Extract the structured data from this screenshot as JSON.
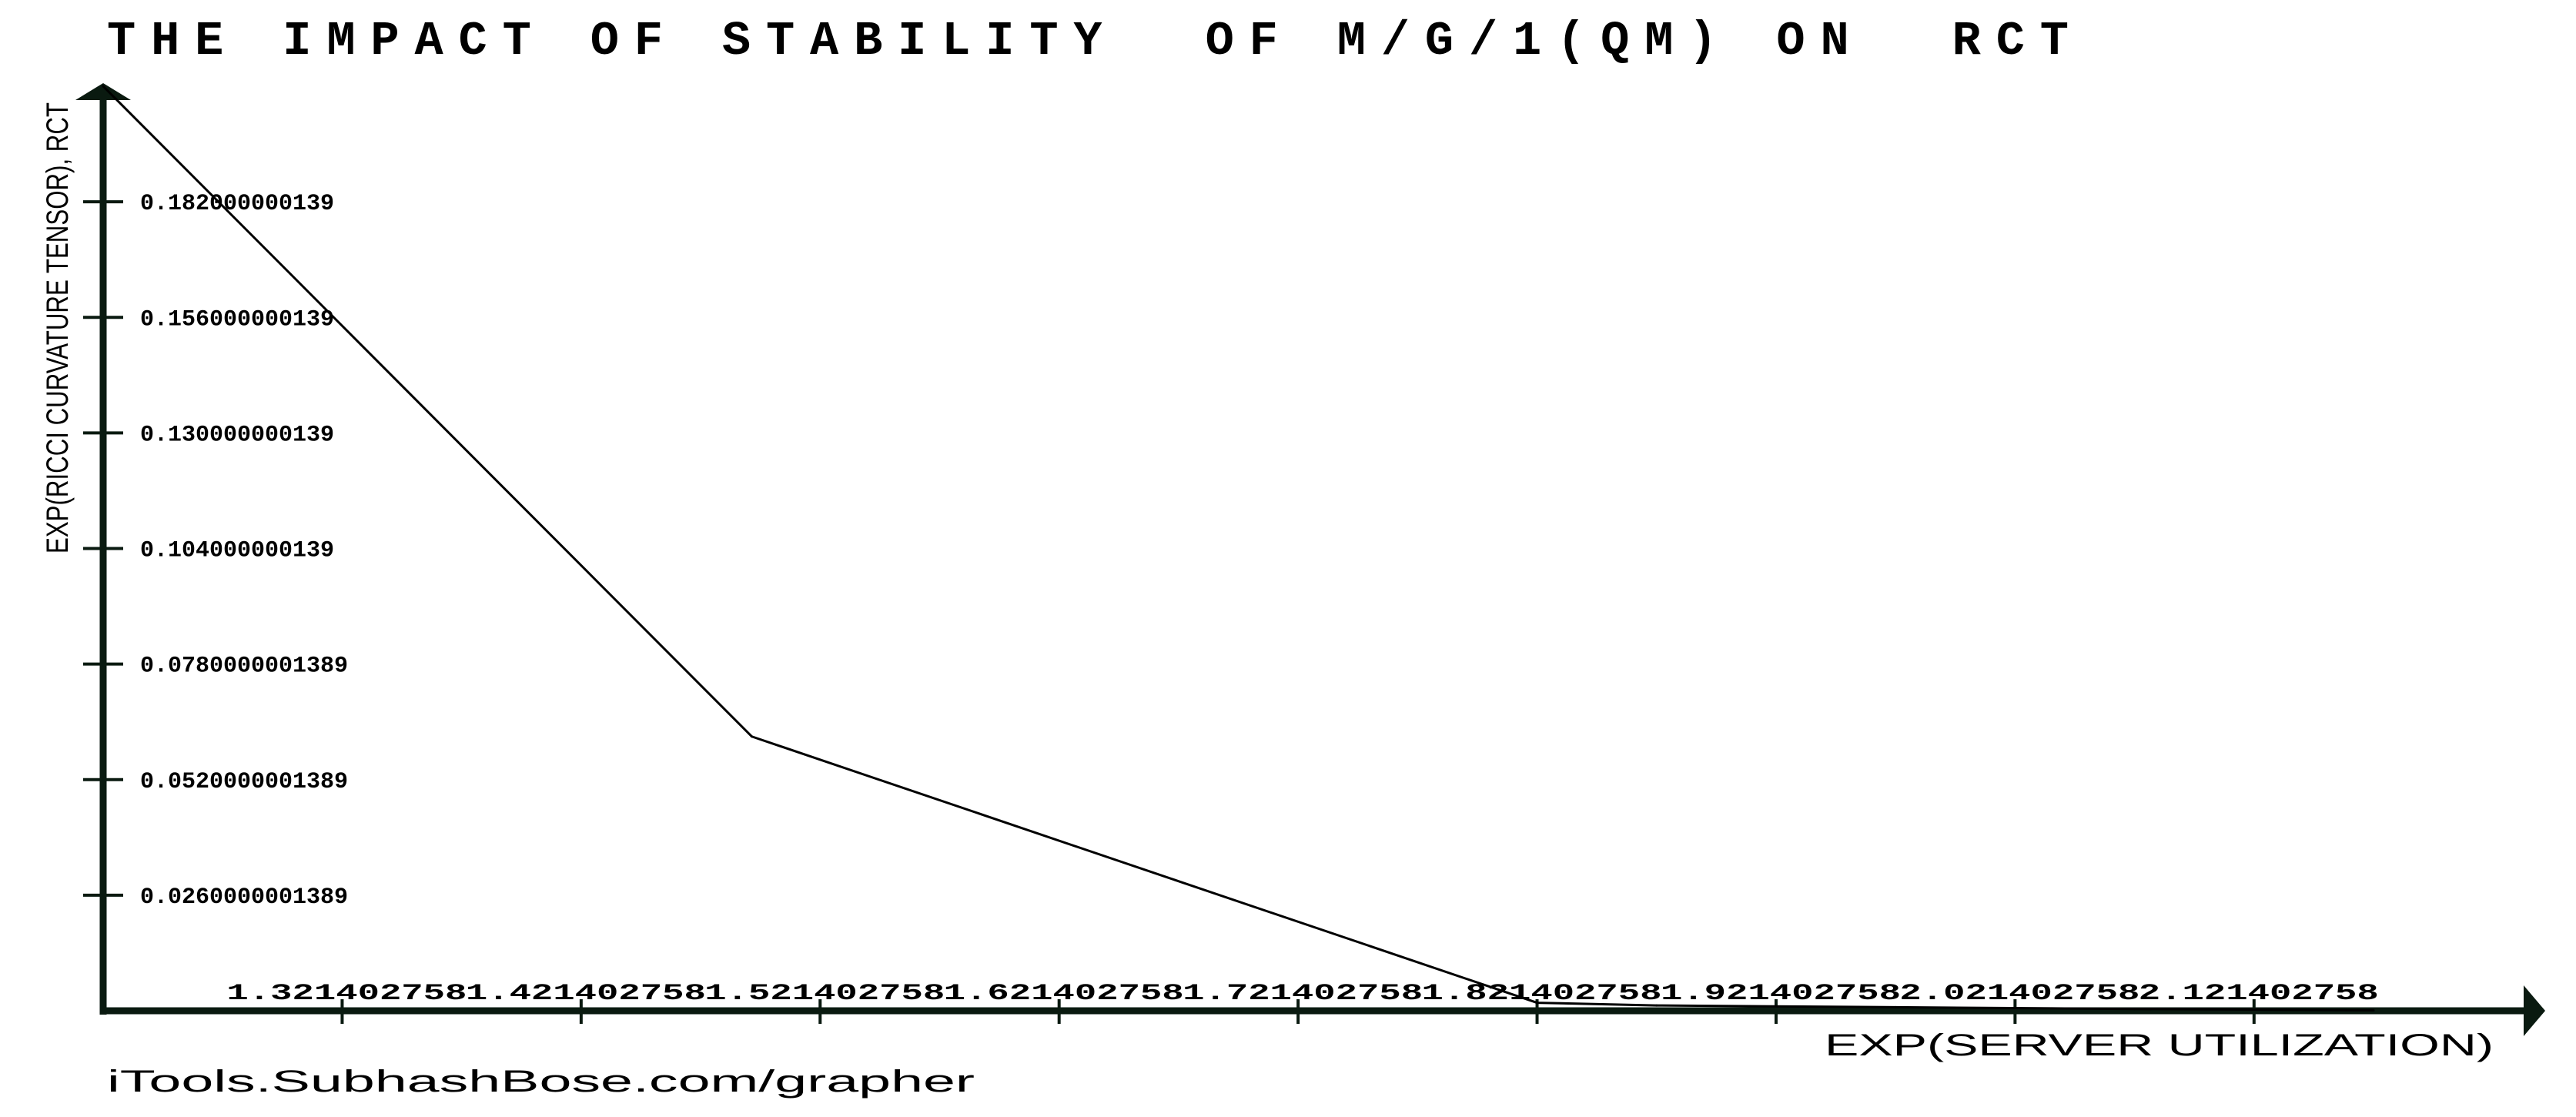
{
  "chart_data": {
    "type": "line",
    "title": "THE IMPACT OF STABILITY  OF M/G/1(QM) ON  RCT",
    "xlabel": "EXP(SERVER UTILIZATION)",
    "ylabel": "EXP(RICCI CURVATURE TENSOR), RCT",
    "x_ticks": [
      "1.321402758",
      "1.421402758",
      "1.521402758",
      "1.621402758",
      "1.721402758",
      "1.821402758",
      "1.921402758",
      "2.021402758",
      "2.121402758"
    ],
    "x_tick_values": [
      1.321402758,
      1.421402758,
      1.521402758,
      1.621402758,
      1.721402758,
      1.821402758,
      1.921402758,
      2.021402758,
      2.121402758
    ],
    "y_ticks": [
      "0.182000000139",
      "0.156000000139",
      "0.130000000139",
      "0.104000000139",
      "0.0780000001389",
      "0.0520000001389",
      "0.0260000001389"
    ],
    "y_tick_values": [
      0.182,
      0.156,
      0.13,
      0.104,
      0.078,
      0.052,
      0.026
    ],
    "xlim": [
      1.2214,
      2.1714
    ],
    "ylim": [
      0,
      0.208
    ],
    "grid": false,
    "line_color": "#000000",
    "axis_color": "#0a1a10",
    "points": [
      {
        "x": 1.2214,
        "y": 0.208
      },
      {
        "x": 1.4928,
        "y": 0.0617
      },
      {
        "x": 1.8214,
        "y": 0.0018
      },
      {
        "x": 1.8714,
        "y": 0.0012
      },
      {
        "x": 1.9714,
        "y": 0.0008
      },
      {
        "x": 2.0714,
        "y": 0.0004
      },
      {
        "x": 2.1714,
        "y": 0.0001
      }
    ]
  },
  "footer": "iTools.SubhashBose.com/grapher"
}
